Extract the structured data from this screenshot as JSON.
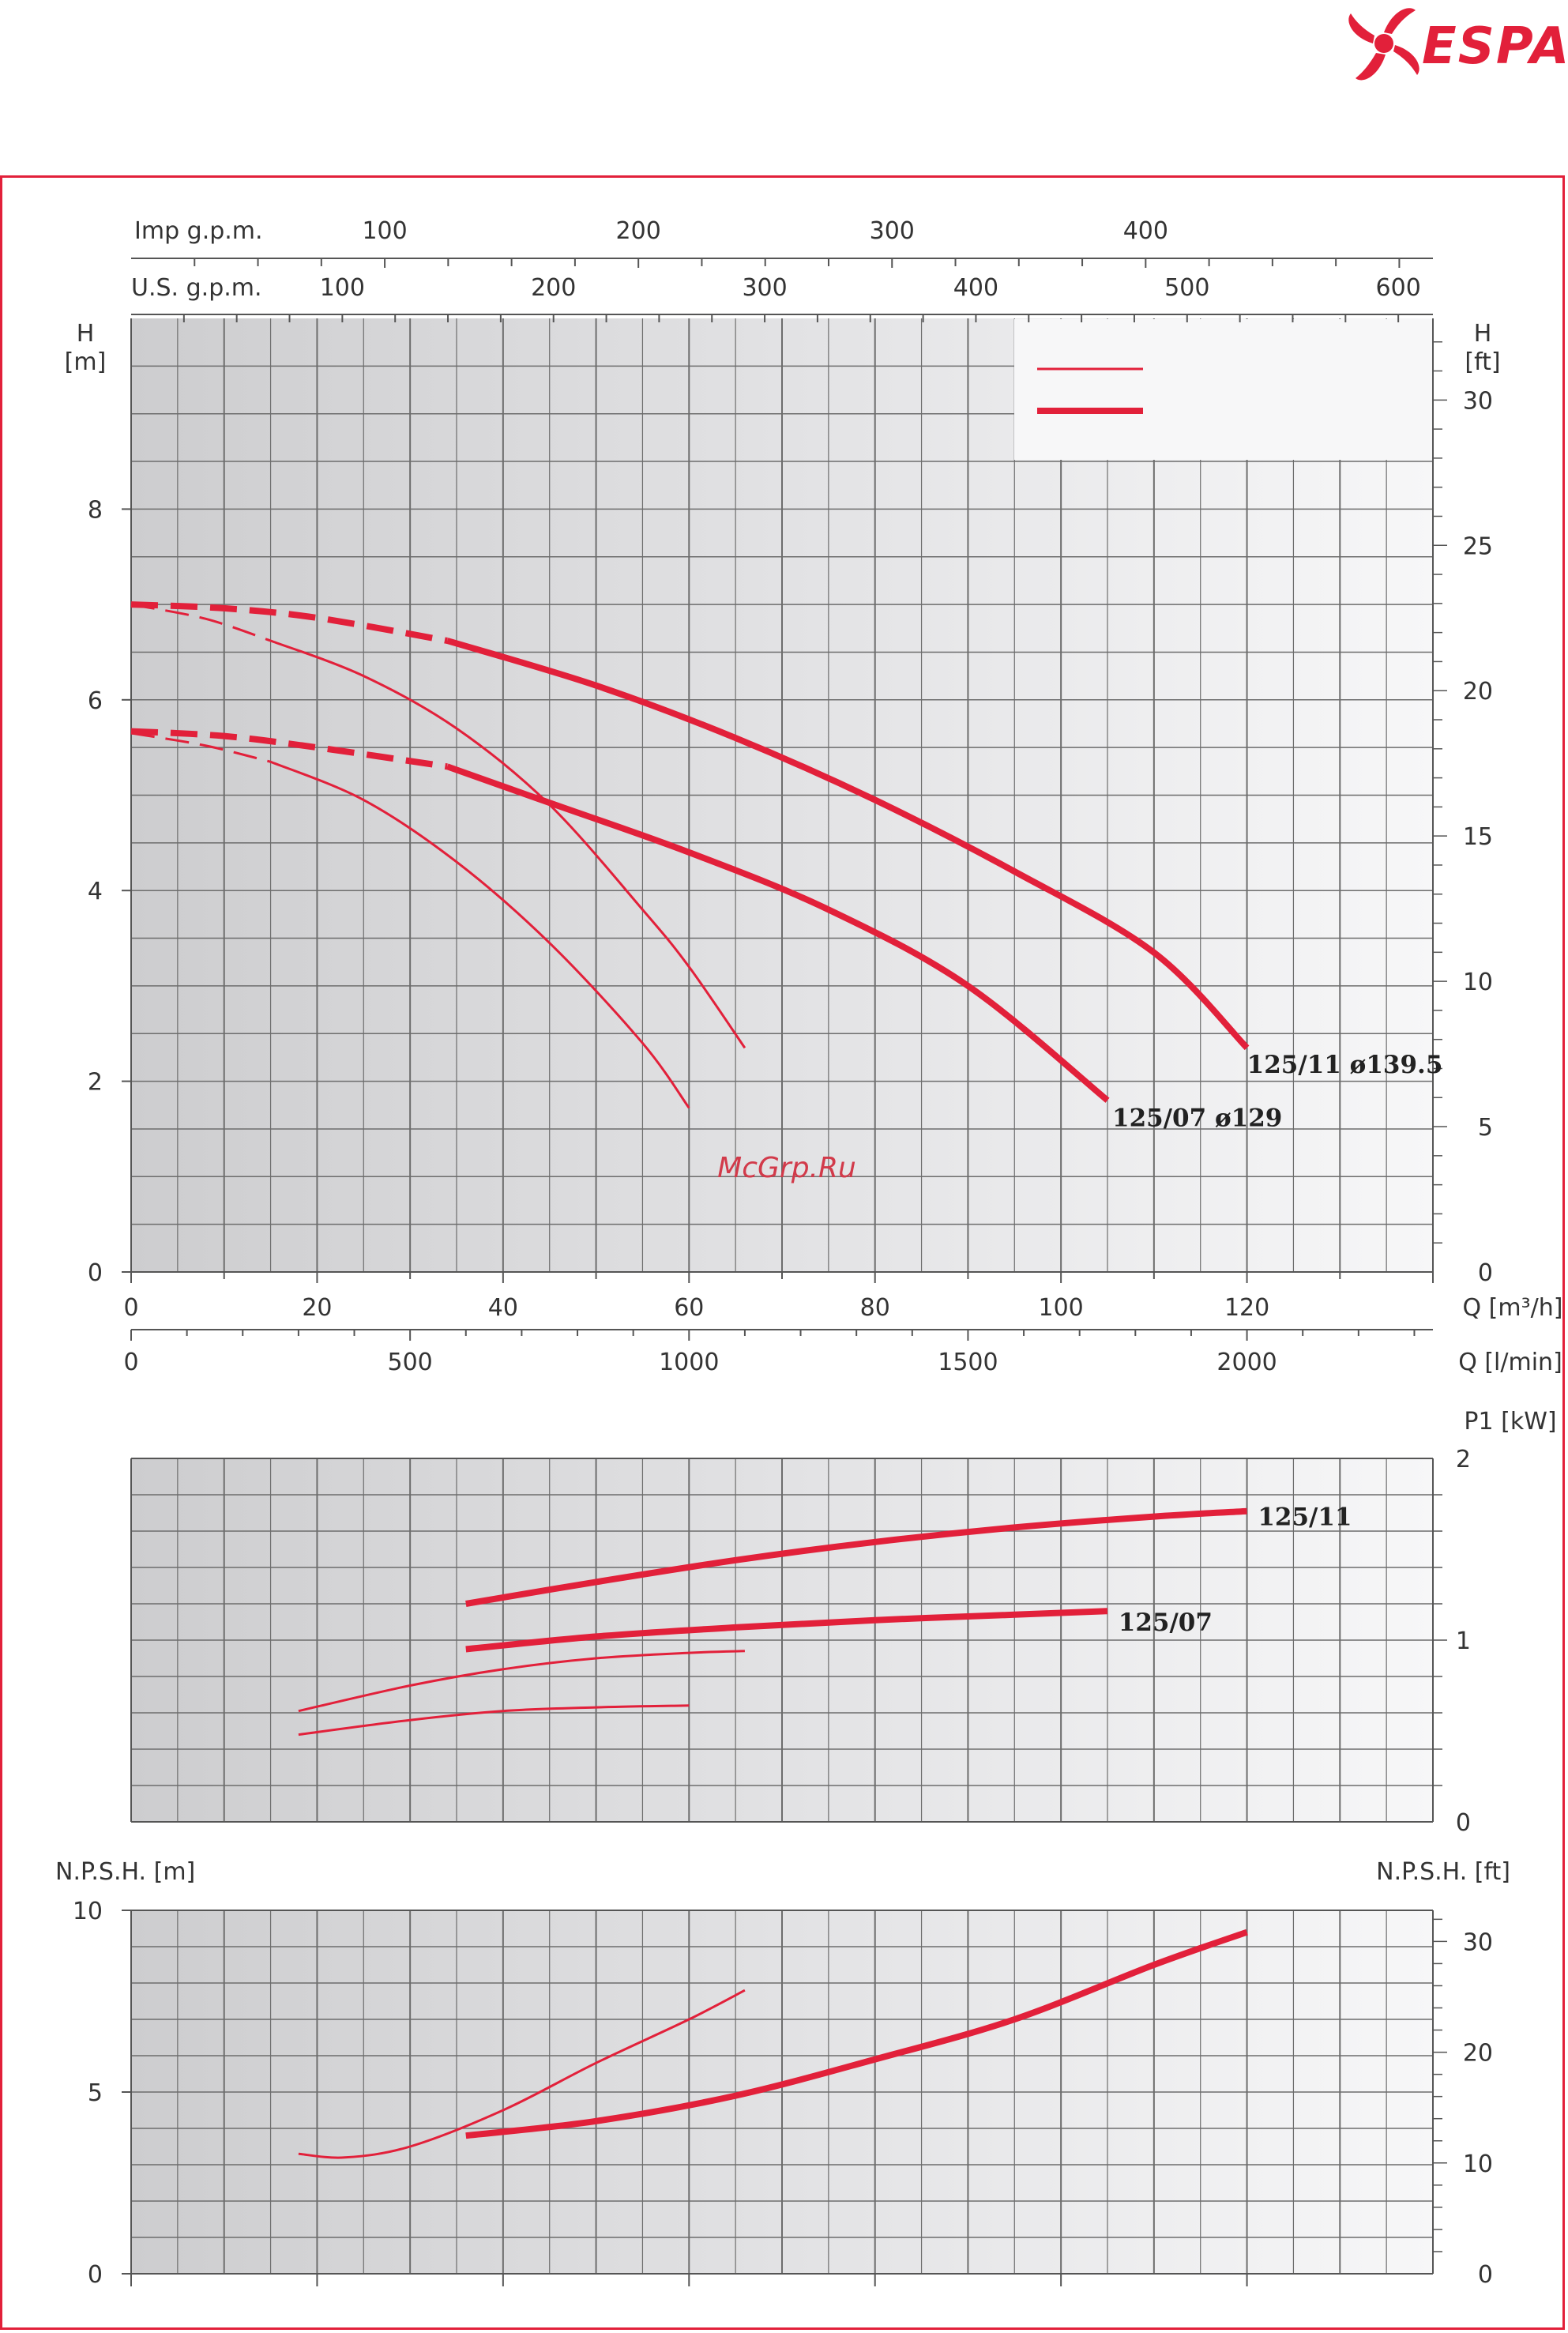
{
  "brand": {
    "name": "ESPA",
    "color": "#e2203a"
  },
  "watermark": "McGrp.Ru",
  "colors": {
    "curve": "#e2203a",
    "grid": "#6d6d6d",
    "axis": "#555555"
  },
  "chart_data": [
    {
      "type": "line",
      "title": "",
      "xlabel": "Q [m³/h]",
      "xlabel_secondary": "Q [l/min]",
      "top_axis_1": {
        "label": "Imp g.p.m.",
        "ticks": [
          "100",
          "200",
          "300",
          "400"
        ],
        "values": [
          100,
          200,
          300,
          400
        ]
      },
      "top_axis_2": {
        "label": "U.S. g.p.m.",
        "ticks": [
          "100",
          "200",
          "300",
          "400",
          "500",
          "600"
        ],
        "values": [
          100,
          200,
          300,
          400,
          500,
          600
        ]
      },
      "ylabel": "H [m]",
      "ylabel_right": "H [ft]",
      "ylabel_unit_top": "H",
      "ylabel_unit_bottom": "[m]",
      "ylabel_right_top": "H",
      "ylabel_right_bottom": "[ft]",
      "xlim": [
        0,
        140
      ],
      "ylim": [
        0,
        10
      ],
      "x_ticks": [
        "0",
        "20",
        "40",
        "60",
        "80",
        "100",
        "120"
      ],
      "x_tick_values": [
        0,
        20,
        40,
        60,
        80,
        100,
        120
      ],
      "x2_ticks": [
        "0",
        "500",
        "1000",
        "1500",
        "2000"
      ],
      "x2_tick_values": [
        0,
        500,
        1000,
        1500,
        2000
      ],
      "y_ticks": [
        "0",
        "2",
        "4",
        "6",
        "8"
      ],
      "y_tick_values": [
        0,
        2,
        4,
        6,
        8
      ],
      "y_right_ticks": [
        "0",
        "5",
        "10",
        "15",
        "20",
        "25",
        "30"
      ],
      "y_right_tick_values": [
        0,
        5,
        10,
        15,
        20,
        25,
        30
      ],
      "legend": {
        "placement": "top-right",
        "entries": [
          {
            "style": "thin"
          },
          {
            "style": "thick"
          }
        ]
      },
      "labels": [
        {
          "text": "125/11  ø139.5",
          "x": 119.5,
          "y": 2.18
        },
        {
          "text": "125/07  ø129",
          "x": 105,
          "y": 1.62
        }
      ],
      "series": [
        {
          "style": "thick",
          "dashed_until": 34,
          "x": [
            0,
            10,
            20,
            34,
            50,
            65,
            80,
            95,
            110,
            120
          ],
          "y": [
            7.0,
            6.96,
            6.86,
            6.62,
            6.15,
            5.6,
            4.95,
            4.2,
            3.35,
            2.35
          ]
        },
        {
          "style": "thick",
          "dashed_until": 34,
          "x": [
            0,
            10,
            20,
            34,
            45,
            60,
            75,
            90,
            105
          ],
          "y": [
            5.67,
            5.62,
            5.5,
            5.3,
            4.92,
            4.4,
            3.8,
            3.0,
            1.8
          ]
        },
        {
          "style": "thin",
          "dashed_until": 15,
          "x": [
            0,
            8,
            15,
            25,
            35,
            45,
            55,
            60,
            66
          ],
          "y": [
            7.0,
            6.85,
            6.62,
            6.25,
            5.7,
            4.9,
            3.8,
            3.2,
            2.35
          ]
        },
        {
          "style": "thin",
          "dashed_until": 15,
          "x": [
            0,
            8,
            15,
            25,
            35,
            45,
            55,
            60
          ],
          "y": [
            5.65,
            5.52,
            5.35,
            4.95,
            4.3,
            3.45,
            2.4,
            1.72
          ]
        }
      ]
    },
    {
      "type": "line",
      "title": "",
      "ylabel_right": "P1 [kW]",
      "xlim": [
        0,
        140
      ],
      "ylim": [
        0,
        2
      ],
      "y_right_ticks": [
        "0",
        "1",
        "2"
      ],
      "y_right_tick_values": [
        0,
        1,
        2
      ],
      "labels": [
        {
          "text": "125/11",
          "x": 121,
          "y": 1.68
        },
        {
          "text": "125/07",
          "x": 106,
          "y": 1.1
        }
      ],
      "series": [
        {
          "style": "thick",
          "x": [
            36,
            50,
            65,
            80,
            95,
            110,
            120
          ],
          "y": [
            1.2,
            1.32,
            1.44,
            1.54,
            1.62,
            1.68,
            1.71
          ]
        },
        {
          "style": "thick",
          "x": [
            36,
            50,
            65,
            80,
            95,
            105
          ],
          "y": [
            0.95,
            1.02,
            1.07,
            1.11,
            1.14,
            1.16
          ]
        },
        {
          "style": "thin",
          "x": [
            18,
            30,
            40,
            50,
            60,
            66
          ],
          "y": [
            0.61,
            0.75,
            0.84,
            0.9,
            0.93,
            0.94
          ]
        },
        {
          "style": "thin",
          "x": [
            18,
            30,
            40,
            50,
            60
          ],
          "y": [
            0.48,
            0.56,
            0.61,
            0.63,
            0.64
          ]
        }
      ]
    },
    {
      "type": "line",
      "title": "",
      "ylabel": "N.P.S.H. [m]",
      "ylabel_right": "N.P.S.H. [ft]",
      "xlim": [
        0,
        140
      ],
      "ylim": [
        0,
        10
      ],
      "y_ticks": [
        "0",
        "5",
        "10"
      ],
      "y_tick_values": [
        0,
        5,
        10
      ],
      "y_right_ticks": [
        "0",
        "10",
        "20",
        "30"
      ],
      "y_right_tick_values": [
        0,
        10,
        20,
        30
      ],
      "series": [
        {
          "style": "thick",
          "x": [
            36,
            50,
            65,
            80,
            95,
            110,
            120
          ],
          "y": [
            3.8,
            4.2,
            4.9,
            5.9,
            7.0,
            8.5,
            9.4
          ]
        },
        {
          "style": "thin",
          "x": [
            18,
            23,
            30,
            40,
            50,
            60,
            66
          ],
          "y": [
            3.3,
            3.2,
            3.5,
            4.5,
            5.8,
            7.0,
            7.8
          ]
        }
      ]
    }
  ]
}
